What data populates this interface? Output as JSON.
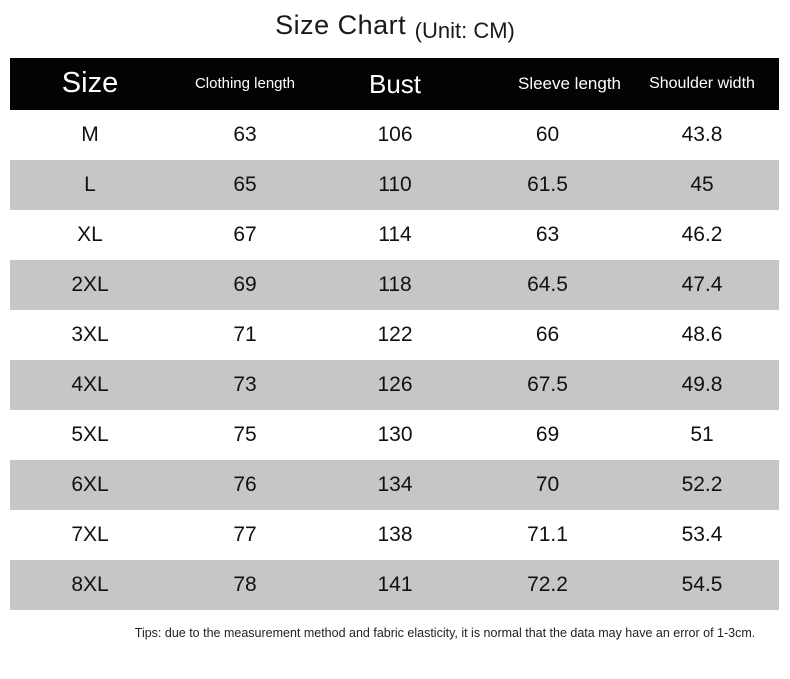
{
  "title": {
    "main": "Size Chart",
    "unit": "(Unit: CM)"
  },
  "chart_data": {
    "type": "table",
    "title": "Size Chart",
    "subtitle": "(Unit: CM)",
    "unit": "CM",
    "columns": [
      "Size",
      "Clothing length",
      "Bust",
      "Sleeve length",
      "Shoulder width"
    ],
    "rows": [
      [
        "M",
        "63",
        "106",
        "60",
        "43.8"
      ],
      [
        "L",
        "65",
        "110",
        "61.5",
        "45"
      ],
      [
        "XL",
        "67",
        "114",
        "63",
        "46.2"
      ],
      [
        "2XL",
        "69",
        "118",
        "64.5",
        "47.4"
      ],
      [
        "3XL",
        "71",
        "122",
        "66",
        "48.6"
      ],
      [
        "4XL",
        "73",
        "126",
        "67.5",
        "49.8"
      ],
      [
        "5XL",
        "75",
        "130",
        "69",
        "51"
      ],
      [
        "6XL",
        "76",
        "134",
        "70",
        "52.2"
      ],
      [
        "7XL",
        "77",
        "138",
        "71.1",
        "53.4"
      ],
      [
        "8XL",
        "78",
        "141",
        "72.2",
        "54.5"
      ]
    ]
  },
  "footer": {
    "tips": "Tips: due to the measurement method and fabric elasticity, it is normal that the data may have an error of 1-3cm."
  },
  "colors": {
    "header_bg": "#030303",
    "header_text": "#ffffff",
    "row_bg": "#ffffff",
    "row_alt_bg": "#c6c6c6",
    "body_text": "#111111"
  }
}
